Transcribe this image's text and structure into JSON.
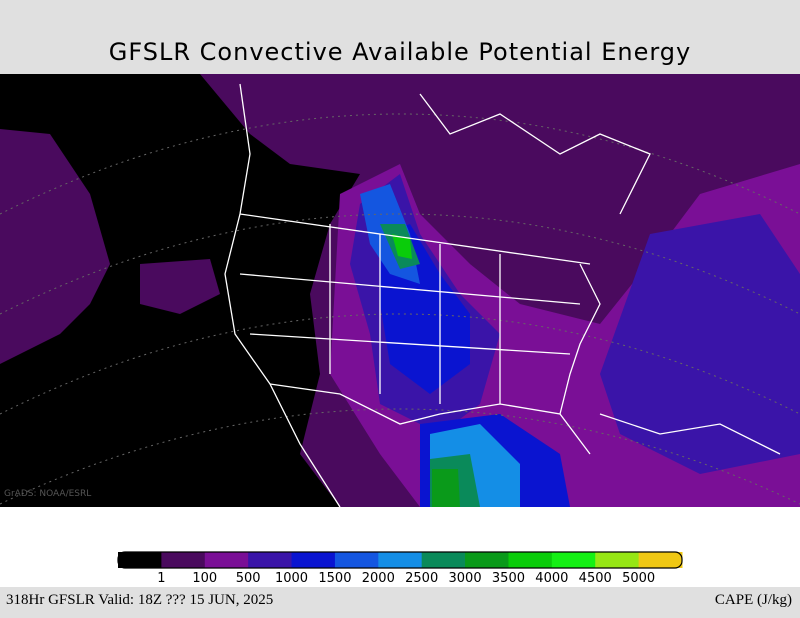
{
  "header": {
    "title": "GFSLR Convective Available Potential Energy"
  },
  "watermark": "GrADS: NOAA/ESRL",
  "legend": {
    "colors": [
      "#000000",
      "#4a0a5e",
      "#7a0f96",
      "#3a14a8",
      "#0a14d0",
      "#1456e0",
      "#148ee6",
      "#0a8a5a",
      "#0a9a1a",
      "#0acc0a",
      "#14f014",
      "#96e614",
      "#f0c814"
    ],
    "levels": [
      1,
      100,
      500,
      1000,
      1500,
      2000,
      2500,
      3000,
      3500,
      4000,
      4500,
      5000
    ]
  },
  "footer": {
    "left": "318Hr GFSLR Valid: 18Z ??? 15 JUN, 2025",
    "right": "CAPE (J/kg)"
  }
}
